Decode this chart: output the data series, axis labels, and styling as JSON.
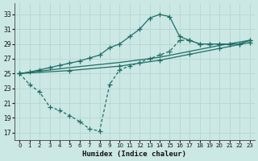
{
  "bg_color": "#cce8e4",
  "grid_color": "#b8d8d4",
  "line_color": "#1e6e66",
  "xlabel": "Humidex (Indice chaleur)",
  "ylim": [
    16,
    34.5
  ],
  "xlim": [
    -0.5,
    23.5
  ],
  "yticks": [
    17,
    19,
    21,
    23,
    25,
    27,
    29,
    31,
    33
  ],
  "xticks": [
    0,
    1,
    2,
    3,
    4,
    5,
    6,
    7,
    8,
    9,
    10,
    11,
    12,
    13,
    14,
    15,
    16,
    17,
    18,
    19,
    20,
    21,
    22,
    23
  ],
  "curve_x": [
    0,
    1,
    2,
    3,
    4,
    5,
    6,
    7,
    8,
    9,
    10,
    11,
    12,
    13,
    14,
    15,
    16,
    17,
    18,
    19,
    20,
    21,
    22,
    23
  ],
  "curve_y": [
    25,
    25.2,
    25.5,
    25.8,
    26.1,
    26.4,
    26.7,
    27.1,
    27.5,
    28.5,
    29.0,
    30.0,
    31.0,
    32.5,
    33.0,
    32.7,
    30.0,
    29.5,
    29.0,
    29.0,
    29.0,
    29.0,
    29.0,
    29.5
  ],
  "diag_x": [
    0,
    5,
    10,
    14,
    17,
    20,
    23
  ],
  "diag_y": [
    25,
    25.8,
    26.5,
    27.2,
    28.0,
    28.8,
    29.5
  ],
  "diag2_x": [
    0,
    5,
    10,
    14,
    17,
    20,
    23
  ],
  "diag2_y": [
    25,
    25.4,
    26.0,
    26.8,
    27.6,
    28.4,
    29.2
  ],
  "vshape_x": [
    0,
    1,
    2,
    3,
    4,
    5,
    6,
    7,
    8,
    9,
    10,
    11,
    12,
    13,
    14,
    15,
    16,
    17,
    18,
    19,
    20,
    21,
    22,
    23
  ],
  "vshape_y": [
    25,
    23.5,
    22.5,
    20.5,
    20.0,
    19.3,
    18.5,
    17.5,
    17.2,
    23.5,
    25.5,
    26.0,
    26.5,
    27.0,
    27.5,
    28.0,
    29.5,
    29.5,
    29.0,
    29.0,
    29.0,
    29.0,
    29.0,
    29.5
  ]
}
